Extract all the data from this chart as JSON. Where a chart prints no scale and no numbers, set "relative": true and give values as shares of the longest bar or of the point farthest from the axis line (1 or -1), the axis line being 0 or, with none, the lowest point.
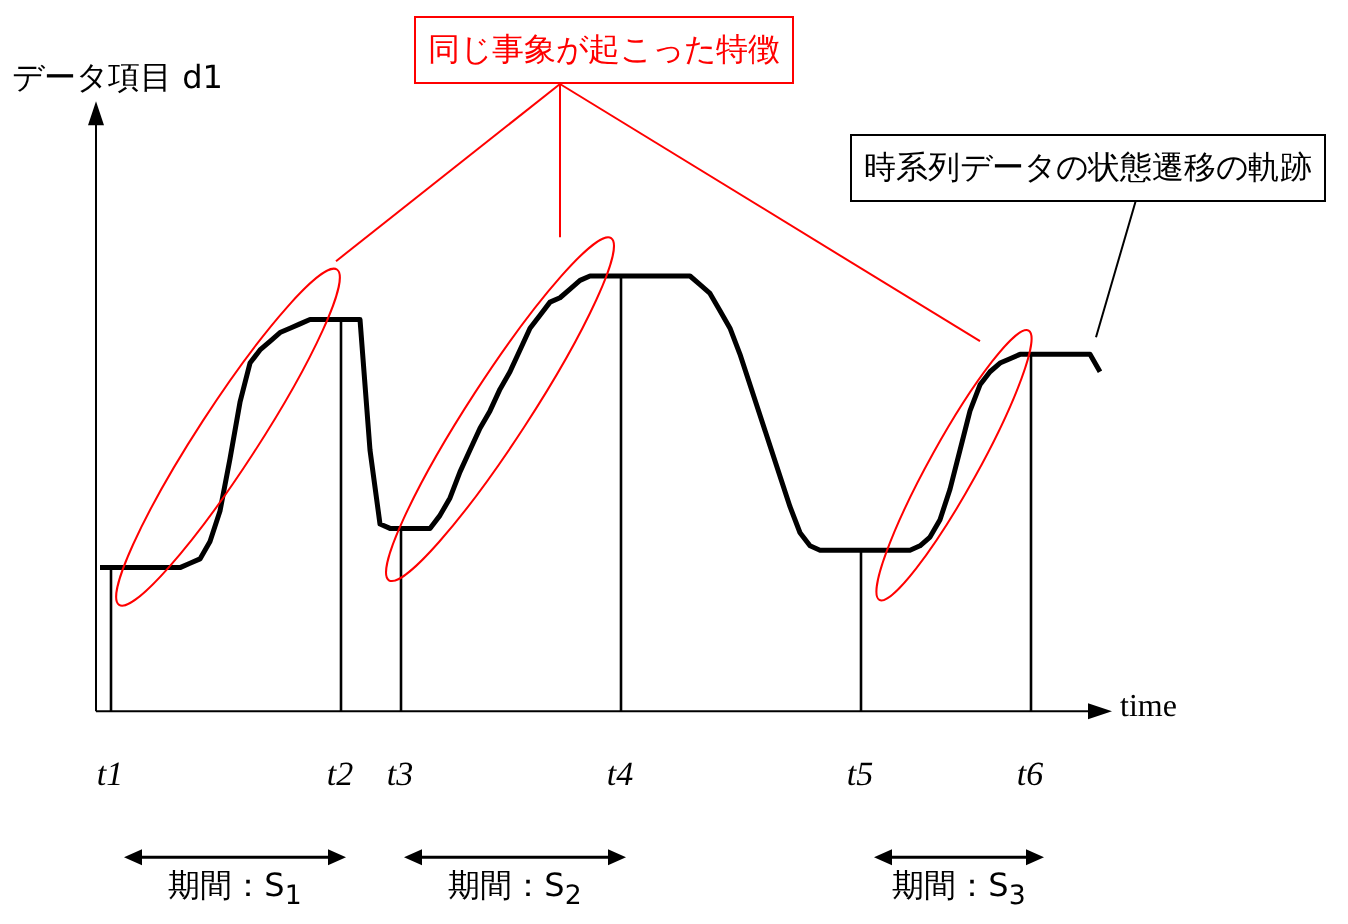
{
  "chart_data": {
    "type": "line",
    "relative": true,
    "xlabel": "time",
    "categories": [
      null,
      "t1",
      null,
      null,
      null,
      null,
      null,
      null,
      null,
      null,
      null,
      null,
      null,
      null,
      null,
      null,
      null,
      null,
      null,
      null,
      null,
      null,
      null,
      null,
      "t2",
      null,
      null,
      null,
      null,
      null,
      "t3",
      null,
      null,
      null,
      null,
      null,
      null,
      null,
      null,
      null,
      null,
      null,
      null,
      null,
      null,
      null,
      null,
      null,
      null,
      null,
      null,
      null,
      "t4",
      null,
      null,
      null,
      null,
      null,
      null,
      null,
      null,
      null,
      null,
      null,
      null,
      null,
      null,
      null,
      null,
      null,
      null,
      null,
      null,
      null,
      null,
      null,
      "t5",
      null,
      null,
      null,
      null,
      null,
      null,
      null,
      null,
      null,
      null,
      null,
      null,
      null,
      null,
      null,
      null,
      "t6",
      null,
      null,
      null,
      null,
      null,
      null,
      null
    ],
    "series": [
      {
        "color": "#000000",
        "values": [
          0.33,
          0.33,
          0.33,
          0.33,
          0.33,
          0.33,
          0.33,
          0.33,
          0.33,
          0.34,
          0.35,
          0.39,
          0.46,
          0.58,
          0.71,
          0.8,
          0.83,
          0.85,
          0.87,
          0.88,
          0.89,
          0.9,
          0.9,
          0.9,
          0.9,
          0.9,
          0.9,
          0.6,
          0.43,
          0.42,
          0.42,
          0.42,
          0.42,
          0.42,
          0.45,
          0.49,
          0.55,
          0.6,
          0.65,
          0.69,
          0.74,
          0.78,
          0.83,
          0.88,
          0.91,
          0.94,
          0.95,
          0.97,
          0.99,
          1.0,
          1.0,
          1.0,
          1.0,
          1.0,
          1.0,
          1.0,
          1.0,
          1.0,
          1.0,
          1.0,
          0.98,
          0.96,
          0.92,
          0.88,
          0.82,
          0.75,
          0.68,
          0.61,
          0.54,
          0.47,
          0.41,
          0.38,
          0.37,
          0.37,
          0.37,
          0.37,
          0.37,
          0.37,
          0.37,
          0.37,
          0.37,
          0.37,
          0.38,
          0.4,
          0.44,
          0.51,
          0.6,
          0.69,
          0.75,
          0.78,
          0.8,
          0.81,
          0.82,
          0.82,
          0.82,
          0.82,
          0.82,
          0.82,
          0.82,
          0.82,
          0.78
        ]
      }
    ],
    "ref_lines": [
      {
        "axis": "x",
        "value": "t1"
      },
      {
        "axis": "x",
        "value": "t2"
      },
      {
        "axis": "x",
        "value": "t3"
      },
      {
        "axis": "x",
        "value": "t4"
      },
      {
        "axis": "x",
        "value": "t5"
      },
      {
        "axis": "x",
        "value": "t6"
      }
    ],
    "annotations": [
      "同じ事象が起こった特徴",
      "時系列データの状態遷移の軌跡",
      "期間：S$_{1}$",
      "期間：S$_{2}$",
      "期間：S$_{3}$",
      "データ項目 d1"
    ]
  }
}
